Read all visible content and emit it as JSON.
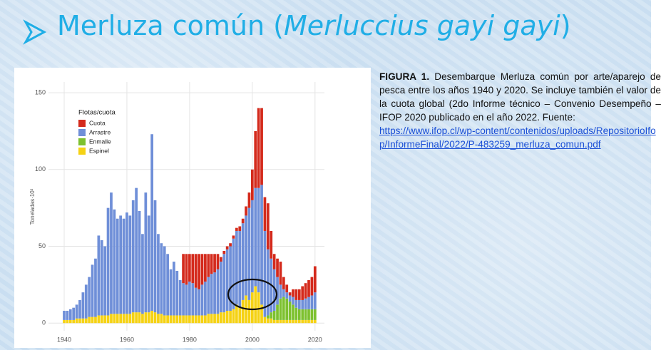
{
  "slide": {
    "title": "Merluza común (",
    "title_species": "Merluccius gayi gayi",
    "title_close": ")",
    "caption_label": "FIGURA 1.",
    "caption_text": "Desembarque Merluza común por arte/aparejo de pesca entre los años 1940 y 2020. Se incluye también el valor de la cuota global (2do Informe técnico – Convenio Desempeño – IFOP 2020 publicado en el año 2022. Fuente:",
    "link": "https://www.ifop.cl/wp-content/contenidos/uploads/RepositorioIfop/InformeFinal/2022/P-483259_merluza_comun.pdf"
  },
  "chart_data": {
    "type": "stacked_bar",
    "y_label": "Toneladas·10³",
    "legend_title": "Flotas/cuota",
    "x": [
      1940,
      1941,
      1942,
      1943,
      1944,
      1945,
      1946,
      1947,
      1948,
      1949,
      1950,
      1951,
      1952,
      1953,
      1954,
      1955,
      1956,
      1957,
      1958,
      1959,
      1960,
      1961,
      1962,
      1963,
      1964,
      1965,
      1966,
      1967,
      1968,
      1969,
      1970,
      1971,
      1972,
      1973,
      1974,
      1975,
      1976,
      1977,
      1978,
      1979,
      1980,
      1981,
      1982,
      1983,
      1984,
      1985,
      1986,
      1987,
      1988,
      1989,
      1990,
      1991,
      1992,
      1993,
      1994,
      1995,
      1996,
      1997,
      1998,
      1999,
      2000,
      2001,
      2002,
      2003,
      2004,
      2005,
      2006,
      2007,
      2008,
      2009,
      2010,
      2011,
      2012,
      2013,
      2014,
      2015,
      2016,
      2017,
      2018,
      2019,
      2020
    ],
    "series": [
      {
        "name": "Cuota",
        "color": "#d42a1c",
        "values": [
          0,
          0,
          0,
          0,
          0,
          0,
          0,
          0,
          0,
          0,
          0,
          0,
          0,
          0,
          0,
          0,
          0,
          0,
          0,
          0,
          0,
          0,
          0,
          0,
          0,
          0,
          0,
          0,
          0,
          0,
          0,
          0,
          0,
          0,
          0,
          0,
          0,
          0,
          19,
          20,
          18,
          19,
          22,
          23,
          20,
          18,
          15,
          13,
          12,
          10,
          3,
          2,
          2,
          2,
          2,
          2,
          3,
          3,
          6,
          10,
          20,
          37,
          52,
          50,
          22,
          30,
          18,
          10,
          12,
          15,
          8,
          5,
          2,
          5,
          7,
          7,
          9,
          10,
          11,
          12,
          17
        ]
      },
      {
        "name": "Arrastre",
        "color": "#6f8fd8",
        "values": [
          6,
          6,
          7,
          8,
          9,
          12,
          17,
          22,
          26,
          34,
          38,
          52,
          49,
          45,
          70,
          79,
          68,
          62,
          64,
          62,
          66,
          64,
          73,
          81,
          66,
          52,
          78,
          63,
          115,
          73,
          52,
          46,
          45,
          40,
          30,
          35,
          29,
          23,
          21,
          20,
          22,
          21,
          18,
          17,
          20,
          22,
          24,
          26,
          27,
          29,
          33,
          38,
          40,
          42,
          46,
          48,
          50,
          50,
          52,
          60,
          60,
          64,
          68,
          78,
          56,
          43,
          35,
          27,
          18,
          9,
          5,
          4,
          4,
          5,
          5,
          6,
          6,
          7,
          8,
          9,
          11
        ]
      },
      {
        "name": "Enmalle",
        "color": "#7dc12f",
        "values": [
          0,
          0,
          0,
          0,
          0,
          0,
          0,
          0,
          0,
          0,
          0,
          0,
          0,
          0,
          0,
          0,
          0,
          0,
          0,
          0,
          0,
          0,
          0,
          0,
          0,
          0,
          0,
          0,
          0,
          0,
          0,
          0,
          0,
          0,
          0,
          0,
          0,
          0,
          0,
          0,
          0,
          0,
          0,
          0,
          0,
          0,
          0,
          0,
          0,
          0,
          0,
          0,
          0,
          0,
          0,
          0,
          0,
          0,
          0,
          0,
          0,
          0,
          0,
          0,
          0,
          2,
          4,
          6,
          10,
          14,
          15,
          14,
          12,
          10,
          8,
          7,
          7,
          7,
          7,
          7,
          7
        ]
      },
      {
        "name": "Espinel",
        "color": "#f5d214",
        "values": [
          2,
          2,
          2,
          2,
          3,
          3,
          3,
          3,
          4,
          4,
          4,
          5,
          5,
          5,
          5,
          6,
          6,
          6,
          6,
          6,
          6,
          6,
          7,
          7,
          7,
          6,
          7,
          7,
          8,
          7,
          6,
          6,
          5,
          5,
          5,
          5,
          5,
          5,
          5,
          5,
          5,
          5,
          5,
          5,
          5,
          5,
          6,
          6,
          6,
          6,
          7,
          7,
          8,
          8,
          9,
          12,
          10,
          15,
          18,
          15,
          20,
          24,
          20,
          12,
          4,
          3,
          3,
          2,
          2,
          2,
          2,
          2,
          2,
          2,
          2,
          2,
          2,
          2,
          2,
          2,
          2
        ]
      }
    ],
    "xlim": [
      1935,
      2023
    ],
    "xticks": [
      1940,
      1960,
      1980,
      2000,
      2020
    ],
    "ylim": [
      -5,
      157
    ],
    "yticks": [
      0,
      50,
      100,
      150
    ],
    "grid": true
  }
}
